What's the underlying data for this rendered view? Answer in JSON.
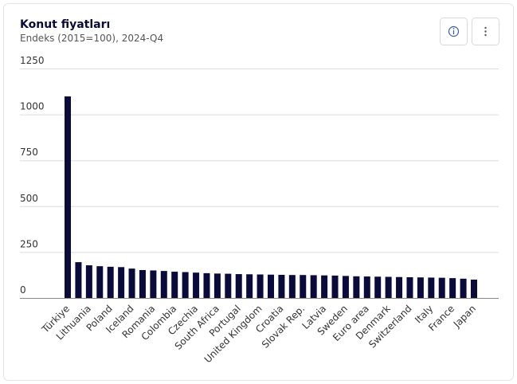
{
  "chart_data": {
    "type": "bar",
    "title": "Konut fiyatları",
    "subtitle": "Endeks (2015=100), 2024-Q4",
    "categories": [
      "Türkiye",
      null,
      "Lithuania",
      null,
      "Poland",
      null,
      "Iceland",
      null,
      "Romania",
      null,
      "Colombia",
      null,
      "Czechia",
      null,
      "South Africa",
      null,
      "Portugal",
      null,
      "United Kingdom",
      null,
      "Croatia",
      null,
      "Slovak Rep.",
      null,
      "Latvia",
      null,
      "Sweden",
      null,
      "Euro area",
      null,
      "Denmark",
      null,
      "Switzerland",
      null,
      "Italy",
      null,
      "France",
      null,
      "Japan"
    ],
    "values": [
      1098,
      195,
      178,
      173,
      170,
      168,
      160,
      152,
      150,
      147,
      143,
      141,
      138,
      135,
      133,
      132,
      130,
      129,
      128,
      127,
      126,
      125,
      125,
      124,
      123,
      122,
      120,
      118,
      117,
      116,
      115,
      114,
      113,
      112,
      111,
      110,
      108,
      105,
      100
    ],
    "color": "#0b0b3b",
    "ylim": [
      0,
      1250
    ],
    "yticks": [
      0,
      250,
      500,
      750,
      1000,
      1250
    ],
    "grid": true
  }
}
